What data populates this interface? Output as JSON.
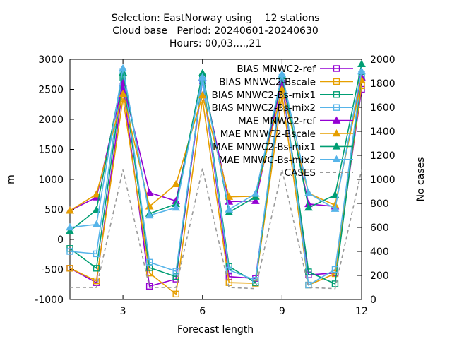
{
  "chart_data": {
    "type": "line",
    "title_lines": [
      "Selection: EastNorway using    12 stations",
      "Cloud base   Period: 20240601-20240630",
      "Hours: 00,03,...,21"
    ],
    "xlabel": "Forecast length",
    "ylabel": "m",
    "y2label": "No cases",
    "xlim": [
      1,
      12
    ],
    "ylim": [
      -1000,
      3000
    ],
    "y2lim": [
      0,
      2000
    ],
    "x_ticks": [
      3,
      6,
      9,
      12
    ],
    "y_ticks": [
      -1000,
      -500,
      0,
      500,
      1000,
      1500,
      2000,
      2500,
      3000
    ],
    "y2_ticks": [
      0,
      200,
      400,
      600,
      800,
      1000,
      1200,
      1400,
      1600,
      1800,
      2000
    ],
    "legend_position": "top-right",
    "x": [
      1,
      2,
      3,
      4,
      5,
      6,
      7,
      8,
      9,
      10,
      11,
      12
    ],
    "series": [
      {
        "name": "BIAS MNWC2-ref",
        "axis": "y1",
        "color": "#9400d3",
        "marker": "square-open",
        "dash": false,
        "values": [
          -480,
          -720,
          2550,
          -780,
          -660,
          2640,
          -620,
          -650,
          2600,
          -590,
          -560,
          2500
        ]
      },
      {
        "name": "BIAS MNWC2-Bscale",
        "axis": "y1",
        "color": "#e69f00",
        "marker": "square-open",
        "dash": false,
        "values": [
          -480,
          -690,
          2350,
          -560,
          -910,
          2330,
          -720,
          -730,
          2400,
          -760,
          -570,
          2560
        ]
      },
      {
        "name": "BIAS MNWC2-Bs-mix1",
        "axis": "y1",
        "color": "#009e73",
        "marker": "square-open",
        "dash": false,
        "values": [
          -150,
          -480,
          2700,
          -470,
          -620,
          2700,
          -450,
          -720,
          2650,
          -540,
          -740,
          2700
        ]
      },
      {
        "name": "BIAS MNWC2-Bs-mix2",
        "axis": "y1",
        "color": "#56b4e9",
        "marker": "square-open",
        "dash": false,
        "values": [
          -200,
          -240,
          2800,
          -380,
          -530,
          2650,
          -510,
          -680,
          2700,
          -760,
          -500,
          2750
        ]
      },
      {
        "name": "MAE MNWC2-ref",
        "axis": "y1",
        "color": "#9400d3",
        "marker": "triangle-filled",
        "dash": false,
        "values": [
          480,
          700,
          2600,
          780,
          640,
          2700,
          630,
          640,
          2650,
          590,
          550,
          2700
        ]
      },
      {
        "name": "MAE MNWC2-Bscale",
        "axis": "y1",
        "color": "#e69f00",
        "marker": "triangle-filled",
        "dash": false,
        "values": [
          480,
          750,
          2420,
          550,
          920,
          2400,
          710,
          720,
          2500,
          770,
          570,
          2650
        ]
      },
      {
        "name": "MAE MNWC2-Bs-mix1",
        "axis": "y1",
        "color": "#009e73",
        "marker": "triangle-filled",
        "dash": false,
        "values": [
          140,
          490,
          2780,
          430,
          590,
          2770,
          450,
          710,
          2720,
          530,
          740,
          2920
        ]
      },
      {
        "name": "MAE MNWC-Bs-mix2",
        "axis": "y1",
        "color": "#56b4e9",
        "marker": "triangle-filled",
        "dash": false,
        "values": [
          200,
          250,
          2850,
          400,
          530,
          2700,
          500,
          760,
          2750,
          770,
          510,
          2800
        ]
      },
      {
        "name": "CASES",
        "axis": "y2",
        "color": "#999999",
        "marker": "none",
        "dash": true,
        "values": [
          100,
          100,
          1080,
          100,
          100,
          1090,
          100,
          90,
          1080,
          100,
          90,
          1080
        ]
      }
    ]
  }
}
